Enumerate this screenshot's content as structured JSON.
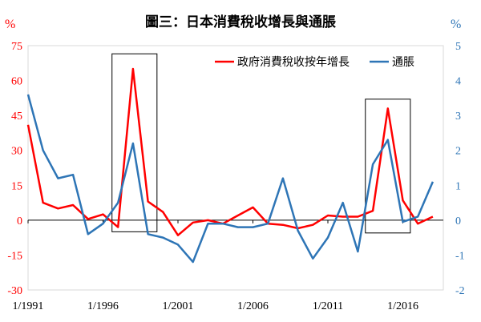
{
  "chart_data": {
    "type": "line",
    "title": "圖三：日本消費稅收增長與通脹",
    "left_axis": {
      "unit": "%",
      "min": -30,
      "max": 75,
      "ticks": [
        -30,
        -15,
        0,
        15,
        30,
        45,
        60,
        75
      ],
      "tick_labels": [
        "-30",
        "-15",
        "0",
        "15",
        "30",
        "45",
        "60",
        "75"
      ],
      "color": "#ff0000"
    },
    "right_axis": {
      "unit": "%",
      "min": -2,
      "max": 5,
      "ticks": [
        -2,
        -1,
        0,
        1,
        2,
        3,
        4,
        5
      ],
      "tick_labels": [
        "-2",
        "-1",
        "0",
        "1",
        "2",
        "3",
        "4",
        "5"
      ],
      "color": "#2e75b6"
    },
    "x_tick_labels": [
      "1/1991",
      "1/1996",
      "1/2001",
      "1/2006",
      "1/2011",
      "1/2016"
    ],
    "x_tick_years": [
      1991,
      1996,
      2001,
      2006,
      2011,
      2016
    ],
    "x_range": [
      1991,
      2018.7
    ],
    "legend_position": "top-right",
    "series": [
      {
        "name": "政府消費稅收按年增長",
        "axis": "left",
        "color": "#ff0000",
        "x": [
          1991,
          1992,
          1993,
          1994,
          1995,
          1996,
          1997,
          1998,
          1999,
          2000,
          2001,
          2002,
          2003,
          2004,
          2005,
          2006,
          2007,
          2008,
          2009,
          2010,
          2011,
          2012,
          2013,
          2014,
          2015,
          2016,
          2017,
          2018
        ],
        "values": [
          41,
          7.5,
          5,
          6.5,
          0.5,
          2.5,
          -3,
          65,
          8,
          3.5,
          -6.5,
          -1,
          0,
          -1.5,
          2,
          5.5,
          -1.5,
          -2,
          -3.5,
          -2,
          2,
          1.5,
          1.5,
          4,
          48,
          8.5,
          -1.5,
          1.5
        ]
      },
      {
        "name": "通脹",
        "axis": "right",
        "color": "#2e75b6",
        "x": [
          1991,
          1992,
          1993,
          1994,
          1995,
          1996,
          1997,
          1998,
          1999,
          2000,
          2001,
          2002,
          2003,
          2004,
          2005,
          2006,
          2007,
          2008,
          2009,
          2010,
          2011,
          2012,
          2013,
          2014,
          2015,
          2016,
          2017,
          2018
        ],
        "values": [
          3.6,
          2.0,
          1.2,
          1.3,
          -0.4,
          -0.1,
          0.5,
          2.2,
          -0.4,
          -0.5,
          -0.7,
          -1.2,
          -0.1,
          -0.1,
          -0.2,
          -0.2,
          -0.1,
          1.2,
          -0.3,
          -1.1,
          -0.5,
          0.5,
          -0.9,
          1.6,
          2.3,
          -0.05,
          0.1,
          1.1
        ]
      }
    ],
    "highlight_boxes": [
      {
        "x": [
          1996.6,
          1999.6
        ],
        "y": [
          -5,
          71.5
        ],
        "axis": "left"
      },
      {
        "x": [
          2013.5,
          2016.5
        ],
        "y": [
          -5.5,
          52
        ],
        "axis": "left"
      }
    ]
  }
}
